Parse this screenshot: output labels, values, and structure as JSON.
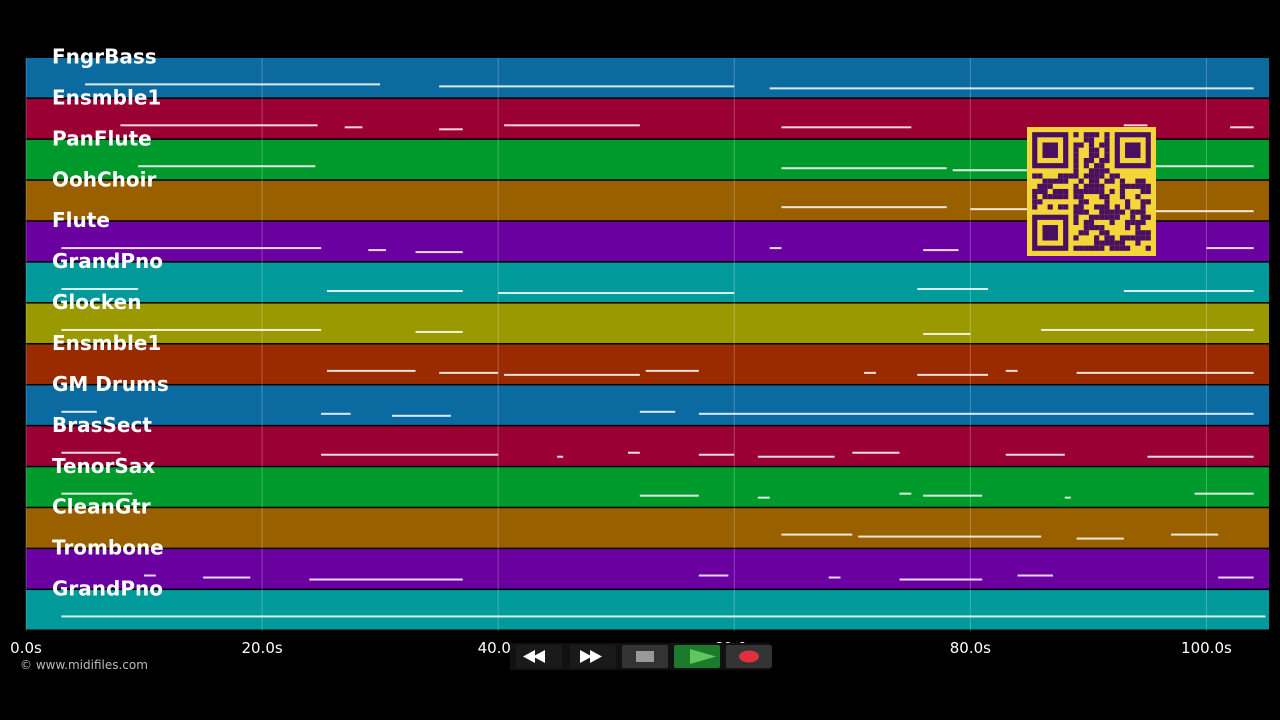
{
  "time_axis": {
    "range": [
      0,
      105.3
    ],
    "ticks": [
      {
        "value": 0,
        "label": "0.0s"
      },
      {
        "value": 20,
        "label": "20.0s"
      },
      {
        "value": 40,
        "label": "40.0s"
      },
      {
        "value": 60,
        "label": "60.0s"
      },
      {
        "value": 80,
        "label": "80.0s"
      },
      {
        "value": 100,
        "label": "100.0s"
      }
    ]
  },
  "tracks": [
    {
      "name": "FngrBass",
      "color": "#0b6aa0",
      "notes": [
        [
          5,
          30
        ],
        [
          35,
          60
        ],
        [
          63,
          104
        ]
      ]
    },
    {
      "name": "Ensmble1",
      "color": "#9b0035",
      "notes": [
        [
          8,
          24.7
        ],
        [
          27,
          28.5
        ],
        [
          35,
          37
        ],
        [
          40.5,
          52
        ],
        [
          64,
          75
        ],
        [
          86,
          88
        ],
        [
          93,
          95
        ],
        [
          102,
          104
        ]
      ]
    },
    {
      "name": "PanFlute",
      "color": "#009a2c",
      "notes": [
        [
          9.5,
          24.5
        ],
        [
          64,
          78
        ],
        [
          78.5,
          86
        ],
        [
          93,
          104
        ]
      ]
    },
    {
      "name": "OohChoir",
      "color": "#9a6000",
      "notes": [
        [
          64,
          78
        ],
        [
          80,
          86
        ],
        [
          92,
          104
        ]
      ]
    },
    {
      "name": "Flute",
      "color": "#6a00a0",
      "notes": [
        [
          3,
          25
        ],
        [
          29,
          30.5
        ],
        [
          33,
          37
        ],
        [
          63,
          64
        ],
        [
          76,
          79
        ],
        [
          87,
          91
        ],
        [
          100,
          104
        ]
      ]
    },
    {
      "name": "GrandPno",
      "color": "#009a9a",
      "notes": [
        [
          3,
          9.5
        ],
        [
          25.5,
          37
        ],
        [
          40,
          60
        ],
        [
          75.5,
          81.5
        ],
        [
          93,
          104
        ]
      ]
    },
    {
      "name": "Glocken",
      "color": "#9a9a00",
      "notes": [
        [
          3,
          25
        ],
        [
          33,
          37
        ],
        [
          76,
          80
        ],
        [
          86,
          104
        ]
      ]
    },
    {
      "name": "Ensmble1",
      "color": "#9a2a00",
      "notes": [
        [
          25.5,
          33
        ],
        [
          35,
          40
        ],
        [
          40.5,
          52
        ],
        [
          52.5,
          57
        ],
        [
          71,
          72
        ],
        [
          75.5,
          81.5
        ],
        [
          83,
          84
        ],
        [
          89,
          104
        ]
      ]
    },
    {
      "name": "GM Drums",
      "color": "#0b6aa0",
      "notes": [
        [
          3,
          6
        ],
        [
          25,
          27.5
        ],
        [
          31,
          36
        ],
        [
          52,
          55
        ],
        [
          57,
          104
        ]
      ]
    },
    {
      "name": "BrasSect",
      "color": "#9b0035",
      "notes": [
        [
          3,
          8
        ],
        [
          25,
          40
        ],
        [
          45,
          45.5
        ],
        [
          51,
          52
        ],
        [
          57,
          60
        ],
        [
          62,
          68.5
        ],
        [
          70,
          74
        ],
        [
          83,
          88
        ],
        [
          95,
          104
        ]
      ]
    },
    {
      "name": "TenorSax",
      "color": "#009a2c",
      "notes": [
        [
          3,
          9
        ],
        [
          52,
          57
        ],
        [
          62,
          63
        ],
        [
          74,
          75
        ],
        [
          76,
          81
        ],
        [
          88,
          88.5
        ],
        [
          99,
          104
        ]
      ]
    },
    {
      "name": "CleanGtr",
      "color": "#9a6000",
      "notes": [
        [
          64,
          70
        ],
        [
          70.5,
          86
        ],
        [
          89,
          93
        ],
        [
          97,
          101
        ]
      ]
    },
    {
      "name": "Trombone",
      "color": "#6a00a0",
      "notes": [
        [
          10,
          11
        ],
        [
          15,
          19
        ],
        [
          24,
          37
        ],
        [
          57,
          59.5
        ],
        [
          68,
          69
        ],
        [
          74,
          81
        ],
        [
          84,
          87
        ],
        [
          101,
          104
        ]
      ]
    },
    {
      "name": "GrandPno",
      "color": "#009a9a",
      "notes": [
        [
          3,
          105
        ]
      ]
    }
  ],
  "copyright": "© www.midifiles.com"
}
